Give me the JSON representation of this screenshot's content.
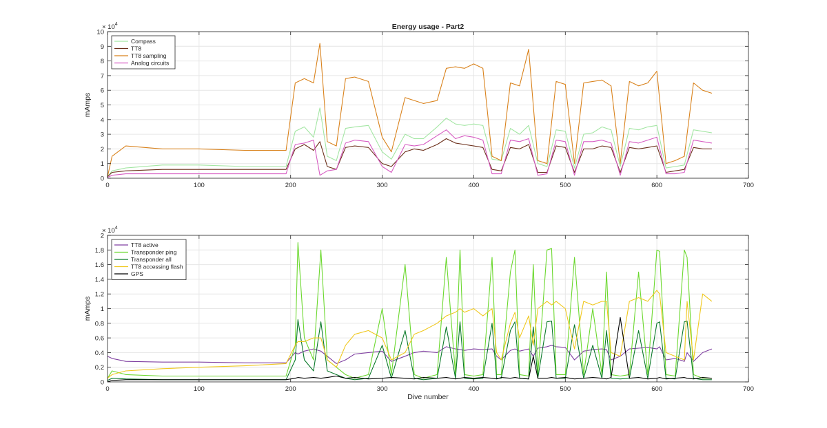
{
  "chart_data": [
    {
      "type": "line",
      "title": "Energy usage - Part2",
      "xlabel": "",
      "ylabel": "mAmps",
      "xlim": [
        0,
        700
      ],
      "ylim": [
        0,
        10
      ],
      "x_ticks": [
        0,
        100,
        200,
        300,
        400,
        500,
        600,
        700
      ],
      "y_ticks": [
        0,
        1,
        2,
        3,
        4,
        5,
        6,
        7,
        8,
        9,
        10
      ],
      "y_exponent_base": "× 10",
      "y_exponent_power": "4",
      "grid": true,
      "legend_position": "top-left",
      "x": [
        0,
        5,
        20,
        60,
        100,
        150,
        195,
        205,
        215,
        225,
        232,
        240,
        250,
        260,
        270,
        285,
        300,
        310,
        325,
        335,
        345,
        360,
        370,
        380,
        390,
        400,
        410,
        420,
        430,
        440,
        450,
        460,
        470,
        480,
        490,
        500,
        510,
        520,
        530,
        540,
        550,
        560,
        570,
        580,
        590,
        600,
        610,
        620,
        630,
        640,
        650,
        660
      ],
      "series": [
        {
          "name": "Compass",
          "color": "#a3e6a3",
          "values": [
            0.1,
            0.5,
            0.7,
            0.9,
            0.9,
            0.8,
            0.8,
            3.2,
            3.5,
            2.8,
            4.8,
            1.5,
            1.2,
            3.4,
            3.5,
            3.6,
            1.8,
            1.3,
            3.0,
            2.7,
            2.7,
            3.5,
            4.1,
            3.7,
            3.6,
            3.7,
            3.6,
            1.3,
            1.2,
            3.4,
            3.0,
            3.6,
            1.0,
            0.8,
            3.3,
            3.2,
            0.7,
            3.0,
            3.1,
            3.5,
            3.3,
            0.8,
            3.4,
            3.3,
            3.5,
            3.6,
            0.7,
            0.8,
            0.9,
            3.3,
            3.2,
            3.1
          ]
        },
        {
          "name": "TT8",
          "color": "#6b2f1a",
          "values": [
            0.1,
            0.4,
            0.5,
            0.6,
            0.6,
            0.6,
            0.6,
            2.0,
            2.3,
            1.9,
            2.5,
            0.8,
            0.6,
            2.1,
            2.2,
            2.1,
            1.0,
            0.8,
            1.8,
            2.0,
            1.9,
            2.3,
            2.7,
            2.4,
            2.3,
            2.2,
            2.1,
            0.6,
            0.5,
            2.1,
            2.0,
            2.3,
            0.4,
            0.4,
            2.2,
            2.1,
            0.4,
            2.0,
            2.0,
            2.2,
            2.1,
            0.4,
            2.1,
            2.0,
            2.1,
            2.2,
            0.4,
            0.5,
            0.6,
            2.1,
            2.0,
            2.0
          ]
        },
        {
          "name": "TT8 sampling",
          "color": "#d9821c",
          "values": [
            0.1,
            1.5,
            2.2,
            2.0,
            2.0,
            1.9,
            1.9,
            6.5,
            6.8,
            6.5,
            9.2,
            2.5,
            2.2,
            6.8,
            6.9,
            6.6,
            2.8,
            1.8,
            5.5,
            5.3,
            5.1,
            5.3,
            7.5,
            7.6,
            7.5,
            7.8,
            7.5,
            1.5,
            1.2,
            6.5,
            6.3,
            8.8,
            1.2,
            1.0,
            6.6,
            6.4,
            1.0,
            6.5,
            6.6,
            6.7,
            6.3,
            1.0,
            6.6,
            6.3,
            6.5,
            7.3,
            1.0,
            1.2,
            1.5,
            6.5,
            6.0,
            5.8
          ]
        },
        {
          "name": "Analog circuits",
          "color": "#d65cc2",
          "values": [
            0.05,
            0.2,
            0.3,
            0.3,
            0.3,
            0.3,
            0.3,
            2.3,
            2.4,
            2.6,
            0.2,
            0.5,
            0.6,
            2.4,
            2.6,
            2.5,
            0.8,
            0.4,
            2.3,
            2.2,
            2.3,
            2.9,
            3.3,
            2.7,
            2.9,
            2.8,
            2.6,
            0.3,
            0.3,
            2.6,
            2.5,
            2.7,
            0.2,
            0.3,
            2.6,
            2.5,
            0.2,
            2.5,
            2.5,
            2.6,
            2.4,
            0.2,
            2.5,
            2.4,
            2.6,
            2.8,
            0.3,
            0.3,
            0.4,
            2.6,
            2.5,
            2.4
          ]
        }
      ]
    },
    {
      "type": "line",
      "title": "",
      "xlabel": "Dive number",
      "ylabel": "mAmps",
      "xlim": [
        0,
        700
      ],
      "ylim": [
        0,
        2
      ],
      "x_ticks": [
        0,
        100,
        200,
        300,
        400,
        500,
        600,
        700
      ],
      "y_ticks": [
        0,
        0.2,
        0.4,
        0.6,
        0.8,
        1,
        1.2,
        1.4,
        1.6,
        1.8,
        2
      ],
      "y_tick_labels": [
        "0",
        "0.2",
        "0.4",
        "0.6",
        "0.8",
        "1",
        "1.2",
        "1.4",
        "1.6",
        "1.8",
        "2"
      ],
      "y_exponent_base": "× 10",
      "y_exponent_power": "4",
      "grid": true,
      "legend_position": "top-left",
      "x": [
        0,
        5,
        20,
        60,
        100,
        150,
        195,
        205,
        208,
        215,
        225,
        233,
        240,
        250,
        260,
        270,
        285,
        300,
        310,
        325,
        335,
        345,
        360,
        370,
        380,
        385,
        390,
        400,
        410,
        420,
        425,
        430,
        440,
        445,
        450,
        460,
        465,
        470,
        480,
        485,
        490,
        500,
        510,
        520,
        530,
        540,
        545,
        550,
        560,
        570,
        580,
        590,
        600,
        603,
        610,
        620,
        630,
        633,
        640,
        650,
        660
      ],
      "series": [
        {
          "name": "TT8 active",
          "color": "#7f3fa0",
          "values": [
            0.35,
            0.32,
            0.28,
            0.27,
            0.27,
            0.26,
            0.26,
            0.4,
            0.38,
            0.42,
            0.45,
            0.42,
            0.35,
            0.25,
            0.3,
            0.38,
            0.4,
            0.42,
            0.28,
            0.35,
            0.4,
            0.42,
            0.4,
            0.48,
            0.45,
            0.44,
            0.43,
            0.45,
            0.44,
            0.45,
            0.35,
            0.3,
            0.43,
            0.45,
            0.42,
            0.45,
            0.35,
            0.46,
            0.48,
            0.5,
            0.48,
            0.47,
            0.3,
            0.42,
            0.44,
            0.45,
            0.44,
            0.3,
            0.35,
            0.45,
            0.46,
            0.47,
            0.45,
            0.48,
            0.3,
            0.32,
            0.28,
            0.4,
            0.28,
            0.4,
            0.45
          ]
        },
        {
          "name": "Transponder ping",
          "color": "#6bd82e",
          "values": [
            0.05,
            0.15,
            0.1,
            0.08,
            0.08,
            0.08,
            0.08,
            0.5,
            1.9,
            0.6,
            0.3,
            1.8,
            0.3,
            0.2,
            0.1,
            0.05,
            0.1,
            1.0,
            0.1,
            1.6,
            0.1,
            0.05,
            0.1,
            1.7,
            0.1,
            1.8,
            0.1,
            0.08,
            0.1,
            1.7,
            0.1,
            0.1,
            1.5,
            1.8,
            0.1,
            0.08,
            1.6,
            0.1,
            1.8,
            1.82,
            0.1,
            0.1,
            1.7,
            0.1,
            1.0,
            0.1,
            1.5,
            0.1,
            0.08,
            0.1,
            1.5,
            0.1,
            1.8,
            1.78,
            0.1,
            0.08,
            1.8,
            1.7,
            0.1,
            0.05,
            0.05
          ]
        },
        {
          "name": "Transponder all",
          "color": "#0b7a2a",
          "values": [
            0.02,
            0.05,
            0.04,
            0.03,
            0.03,
            0.03,
            0.03,
            0.3,
            0.85,
            0.3,
            0.15,
            0.82,
            0.15,
            0.1,
            0.05,
            0.03,
            0.05,
            0.5,
            0.05,
            0.7,
            0.05,
            0.03,
            0.05,
            0.75,
            0.05,
            0.82,
            0.05,
            0.04,
            0.05,
            0.8,
            0.05,
            0.05,
            0.7,
            0.82,
            0.05,
            0.04,
            0.75,
            0.05,
            0.82,
            0.83,
            0.05,
            0.05,
            0.78,
            0.05,
            0.5,
            0.05,
            0.7,
            0.05,
            0.04,
            0.05,
            0.7,
            0.05,
            0.8,
            0.82,
            0.05,
            0.04,
            0.82,
            0.83,
            0.05,
            0.03,
            0.03
          ]
        },
        {
          "name": "TT8 accessing flash",
          "color": "#f0c81e",
          "values": [
            0.05,
            0.1,
            0.15,
            0.18,
            0.2,
            0.22,
            0.25,
            0.5,
            0.55,
            0.55,
            0.6,
            0.6,
            0.3,
            0.2,
            0.5,
            0.65,
            0.7,
            0.6,
            0.3,
            0.4,
            0.65,
            0.7,
            0.8,
            0.9,
            0.95,
            1.0,
            0.95,
            1.0,
            0.9,
            1.0,
            0.4,
            0.3,
            0.8,
            0.95,
            0.6,
            0.9,
            0.5,
            1.0,
            1.1,
            1.05,
            1.1,
            1.0,
            0.45,
            1.1,
            1.05,
            1.1,
            1.1,
            0.4,
            0.35,
            1.1,
            1.15,
            1.1,
            1.25,
            1.2,
            0.4,
            0.35,
            0.3,
            1.1,
            0.3,
            1.2,
            1.1
          ]
        },
        {
          "name": "GPS",
          "color": "#000000",
          "values": [
            0.0,
            0.02,
            0.03,
            0.03,
            0.03,
            0.03,
            0.03,
            0.05,
            0.06,
            0.05,
            0.06,
            0.05,
            0.06,
            0.08,
            0.05,
            0.06,
            0.04,
            0.05,
            0.06,
            0.05,
            0.04,
            0.06,
            0.05,
            0.06,
            0.04,
            0.05,
            0.06,
            0.05,
            0.06,
            0.05,
            0.04,
            0.06,
            0.05,
            0.06,
            0.05,
            0.04,
            0.35,
            0.05,
            0.05,
            0.06,
            0.05,
            0.06,
            0.04,
            0.05,
            0.06,
            0.05,
            0.04,
            0.06,
            0.88,
            0.05,
            0.06,
            0.04,
            0.05,
            0.06,
            0.04,
            0.05,
            0.06,
            0.05,
            0.04,
            0.06,
            0.05
          ]
        }
      ]
    }
  ]
}
